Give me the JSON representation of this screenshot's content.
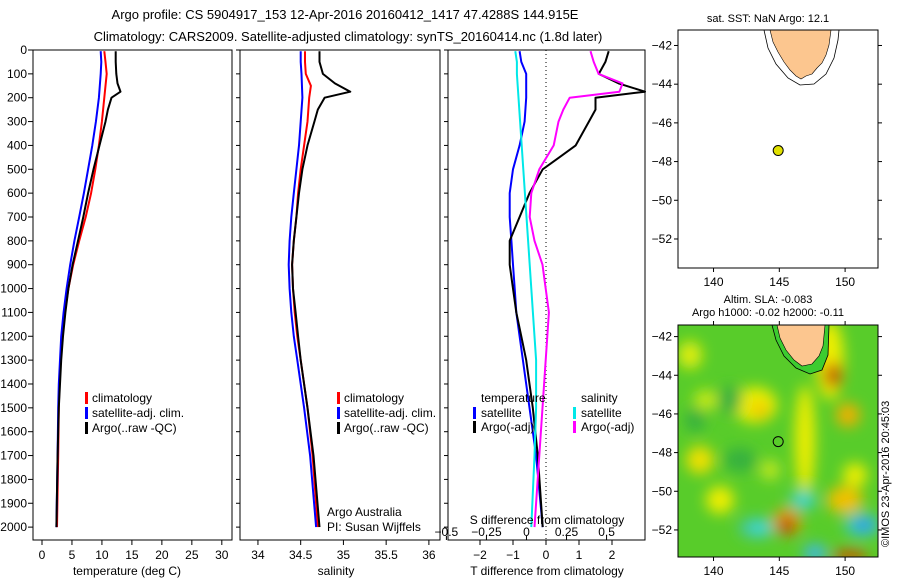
{
  "header": {
    "title_line1": "Argo profile: CS 5904917_153 12-Apr-2016 20160412_1417 47.4288S 144.915E",
    "title_line2": "Climatology: CARS2009. Satellite-adjusted climatology: synTS_20160414.nc (1.8d later)"
  },
  "chart_data": [
    {
      "type": "line",
      "id": "temperature",
      "xlabel": "temperature (deg C)",
      "ylabel": "depth",
      "xlim": [
        -1.5,
        31.7
      ],
      "ylim": [
        2054,
        0
      ],
      "xticks": [
        0,
        5,
        10,
        15,
        20,
        25,
        30
      ],
      "yticks": [
        0,
        100,
        200,
        300,
        400,
        500,
        600,
        700,
        800,
        900,
        1000,
        1100,
        1200,
        1300,
        1400,
        1500,
        1600,
        1700,
        1800,
        1900,
        2000
      ],
      "legend": [
        "climatology",
        "satellite-adj. clim.",
        "Argo(..raw -QC)"
      ],
      "series": [
        {
          "name": "climatology",
          "color": "#ff0000",
          "depth": [
            5,
            50,
            100,
            200,
            300,
            400,
            500,
            600,
            700,
            800,
            900,
            1000,
            1100,
            1200,
            1300,
            1400,
            1500,
            1700,
            2000
          ],
          "values": [
            10.4,
            10.6,
            10.8,
            10.4,
            10.0,
            9.5,
            8.9,
            8.2,
            7.3,
            6.2,
            5.2,
            4.4,
            3.8,
            3.4,
            3.1,
            2.9,
            2.8,
            2.7,
            2.5
          ]
        },
        {
          "name": "satellite-adj. clim.",
          "color": "#0000ff",
          "depth": [
            5,
            50,
            100,
            200,
            300,
            400,
            500,
            600,
            700,
            800,
            900,
            1000,
            1100,
            1200,
            1300,
            1400,
            1500,
            1700,
            2000
          ],
          "values": [
            9.8,
            9.9,
            9.8,
            9.5,
            9.0,
            8.4,
            7.7,
            7.0,
            6.2,
            5.4,
            4.7,
            4.1,
            3.6,
            3.2,
            3.0,
            2.8,
            2.7,
            2.6,
            2.4
          ]
        },
        {
          "name": "Argo(..raw -QC)",
          "color": "#000000",
          "depth": [
            5,
            50,
            100,
            140,
            175,
            200,
            250,
            300,
            400,
            500,
            600,
            700,
            800,
            900,
            1000,
            1100,
            1200,
            1300,
            1400,
            1500,
            1700,
            2000
          ],
          "values": [
            12.3,
            12.3,
            12.4,
            12.6,
            13.1,
            11.6,
            11.0,
            10.6,
            9.6,
            8.6,
            7.7,
            6.9,
            6.0,
            5.1,
            4.4,
            3.9,
            3.5,
            3.2,
            3.0,
            2.8,
            2.6,
            2.4
          ]
        }
      ]
    },
    {
      "type": "line",
      "id": "salinity",
      "xlabel": "salinity",
      "xlim": [
        33.79,
        36.13
      ],
      "ylim": [
        2054,
        0
      ],
      "xticks": [
        34,
        34.5,
        35,
        35.5,
        36
      ],
      "legend": [
        "climatology",
        "satellite-adj. clim.",
        "Argo(..raw -QC)"
      ],
      "annotation": [
        "Argo Australia",
        "PI: Susan Wijffels"
      ],
      "series": [
        {
          "name": "climatology",
          "color": "#ff0000",
          "depth": [
            5,
            50,
            100,
            150,
            200,
            300,
            400,
            500,
            600,
            700,
            800,
            900,
            1000,
            1100,
            1200,
            1300,
            1400,
            1500,
            1700,
            2000
          ],
          "values": [
            34.55,
            34.55,
            34.56,
            34.62,
            34.6,
            34.58,
            34.54,
            34.5,
            34.47,
            34.45,
            34.42,
            34.4,
            34.41,
            34.43,
            34.46,
            34.5,
            34.54,
            34.58,
            34.64,
            34.7
          ]
        },
        {
          "name": "satellite-adj. clim.",
          "color": "#0000ff",
          "depth": [
            5,
            50,
            100,
            200,
            300,
            400,
            500,
            600,
            700,
            800,
            900,
            1000,
            1100,
            1200,
            1300,
            1400,
            1500,
            1700,
            2000
          ],
          "values": [
            34.5,
            34.5,
            34.51,
            34.52,
            34.5,
            34.48,
            34.45,
            34.42,
            34.39,
            34.37,
            34.36,
            34.37,
            34.39,
            34.42,
            34.46,
            34.5,
            34.54,
            34.61,
            34.68
          ]
        },
        {
          "name": "Argo(..raw -QC)",
          "color": "#000000",
          "depth": [
            5,
            50,
            100,
            140,
            175,
            200,
            250,
            300,
            400,
            500,
            600,
            700,
            800,
            900,
            1000,
            1100,
            1200,
            1300,
            1400,
            1500,
            1700,
            2000
          ],
          "values": [
            34.72,
            34.72,
            34.76,
            34.9,
            35.08,
            34.78,
            34.7,
            34.66,
            34.58,
            34.52,
            34.48,
            34.45,
            34.42,
            34.4,
            34.41,
            34.44,
            34.47,
            34.5,
            34.54,
            34.58,
            34.65,
            34.72
          ]
        }
      ]
    },
    {
      "type": "line",
      "id": "difference",
      "xlabel": "T difference from climatology",
      "xlim": [
        -2.97,
        3.0
      ],
      "s_xlabel": "S difference from climatology",
      "s_xlim": [
        -0.49,
        0.74
      ],
      "ylim": [
        2054,
        0
      ],
      "xticks": [
        -2,
        -1,
        0,
        1,
        2
      ],
      "s_xticks": [
        -0.5,
        -0.25,
        0,
        0.25,
        0.5
      ],
      "legend_temperature_title": "temperature",
      "legend_salinity_title": "salinity",
      "legend_temperature": [
        "satellite",
        "Argo(-adj)"
      ],
      "legend_salinity": [
        "satellite",
        "Argo(-adj)"
      ],
      "series": [
        {
          "name": "temperature satellite",
          "axis": "T",
          "color": "#0000ff",
          "depth": [
            5,
            50,
            100,
            200,
            300,
            400,
            500,
            600,
            700,
            800,
            900,
            1000,
            1100,
            1200,
            1300,
            1400,
            1500,
            1700,
            2000
          ],
          "values": [
            -0.8,
            -0.75,
            -0.6,
            -0.6,
            -0.65,
            -0.8,
            -1.0,
            -1.1,
            -1.1,
            -1.05,
            -1.0,
            -0.95,
            -0.9,
            -0.8,
            -0.7,
            -0.6,
            -0.5,
            -0.3,
            -0.1
          ]
        },
        {
          "name": "temperature Argo(-adj)",
          "axis": "T",
          "color": "#000000",
          "depth": [
            5,
            50,
            100,
            140,
            175,
            200,
            250,
            300,
            400,
            450,
            500,
            550,
            600,
            700,
            800,
            900,
            1000,
            1100,
            1200,
            1300,
            1400,
            1500,
            1700,
            2000
          ],
          "values": [
            1.9,
            1.8,
            1.6,
            2.2,
            3.0,
            1.5,
            1.5,
            1.3,
            0.9,
            0.4,
            -0.1,
            -0.3,
            -0.5,
            -0.8,
            -1.1,
            -1.1,
            -1.0,
            -0.9,
            -0.75,
            -0.6,
            -0.5,
            -0.4,
            -0.25,
            -0.1
          ]
        },
        {
          "name": "salinity satellite",
          "axis": "S",
          "color": "#00e8e8",
          "depth": [
            5,
            50,
            100,
            200,
            300,
            400,
            500,
            600,
            700,
            800,
            900,
            1000,
            1100,
            1200,
            1300,
            1400,
            1500,
            1700,
            2000
          ],
          "values": [
            -0.07,
            -0.06,
            -0.06,
            -0.05,
            -0.04,
            -0.03,
            -0.02,
            -0.01,
            0.0,
            0.01,
            0.02,
            0.03,
            0.04,
            0.05,
            0.06,
            0.06,
            0.06,
            0.05,
            0.03
          ]
        },
        {
          "name": "salinity Argo(-adj)",
          "axis": "S",
          "color": "#ff00ff",
          "depth": [
            5,
            50,
            100,
            140,
            175,
            200,
            250,
            300,
            400,
            500,
            600,
            700,
            800,
            900,
            1000,
            1100,
            1200,
            1300,
            1400,
            1500,
            1700,
            2000
          ],
          "values": [
            0.4,
            0.42,
            0.45,
            0.6,
            0.58,
            0.27,
            0.23,
            0.2,
            0.17,
            0.08,
            0.03,
            0.02,
            0.05,
            0.1,
            0.12,
            0.14,
            0.13,
            0.12,
            0.11,
            0.1,
            0.08,
            0.05
          ]
        }
      ]
    },
    {
      "type": "map",
      "id": "sst-map",
      "title": "sat. SST: NaN Argo: 12.1",
      "xlim": [
        137.3,
        152.5
      ],
      "ylim": [
        -53.5,
        -41.2
      ],
      "xticks": [
        140,
        145,
        150
      ],
      "yticks": [
        -42,
        -44,
        -46,
        -48,
        -50,
        -52
      ],
      "float_position": {
        "lon": 144.915,
        "lat": -47.43
      },
      "float_color": "#e0e000"
    },
    {
      "type": "heatmap",
      "id": "sla-map",
      "title_line1": "Altim. SLA: -0.083",
      "title_line2": "Argo h1000: -0.02 h2000: -0.11",
      "xlim": [
        137.3,
        152.5
      ],
      "ylim": [
        -53.4,
        -41.4
      ],
      "xticks": [
        140,
        145,
        150
      ],
      "yticks": [
        -42,
        -44,
        -46,
        -48,
        -50,
        -52
      ],
      "float_position": {
        "lon": 144.915,
        "lat": -47.43
      },
      "credit": "©IMOS 23-Apr-2016 20:45:03"
    }
  ]
}
